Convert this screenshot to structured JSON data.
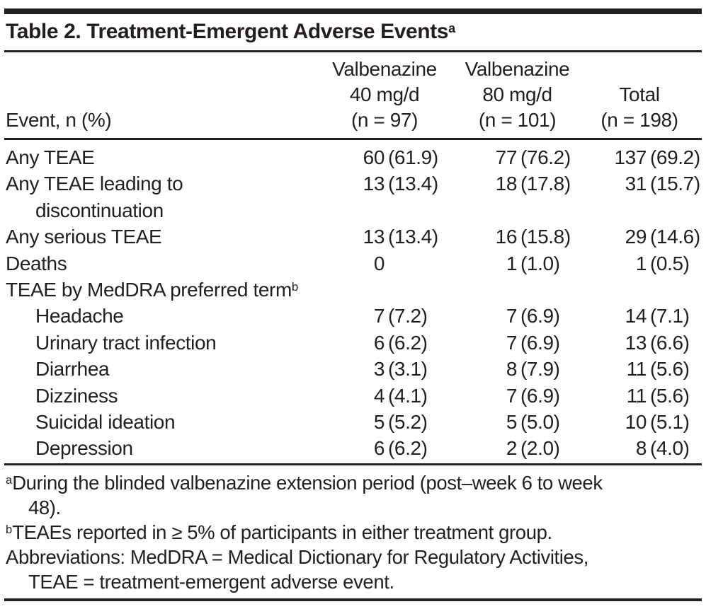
{
  "colors": {
    "text": "#231f20",
    "background": "#ffffff",
    "rule": "#231f20"
  },
  "title": {
    "text": "Table 2. Treatment-Emergent Adverse Events",
    "superscript": "a"
  },
  "table": {
    "row_header_label": "Event, n (%)",
    "columns": [
      {
        "lines": [
          "Valbenazine",
          "40 mg/d",
          "(n = 97)"
        ]
      },
      {
        "lines": [
          "Valbenazine",
          "80 mg/d",
          "(n = 101)"
        ]
      },
      {
        "lines": [
          "Total",
          "(n = 198)"
        ]
      }
    ],
    "rows": [
      {
        "label_lines": [
          "Any TEAE"
        ],
        "indent": false,
        "sup": "",
        "values": [
          [
            "60",
            "(61.9)"
          ],
          [
            "77",
            "(76.2)"
          ],
          [
            "137",
            "(69.2)"
          ]
        ]
      },
      {
        "label_lines": [
          "Any TEAE leading to",
          "discontinuation"
        ],
        "indent": false,
        "sup": "",
        "values": [
          [
            "13",
            "(13.4)"
          ],
          [
            "18",
            "(17.8)"
          ],
          [
            "31",
            "(15.7)"
          ]
        ]
      },
      {
        "label_lines": [
          "Any serious TEAE"
        ],
        "indent": false,
        "sup": "",
        "values": [
          [
            "13",
            "(13.4)"
          ],
          [
            "16",
            "(15.8)"
          ],
          [
            "29",
            "(14.6)"
          ]
        ]
      },
      {
        "label_lines": [
          "Deaths"
        ],
        "indent": false,
        "sup": "",
        "values": [
          [
            "0",
            ""
          ],
          [
            "1",
            "(1.0)"
          ],
          [
            "1",
            "(0.5)"
          ]
        ]
      },
      {
        "label_lines": [
          "TEAE by MedDRA preferred term"
        ],
        "indent": false,
        "sup": "b",
        "values": null
      },
      {
        "label_lines": [
          "Headache"
        ],
        "indent": true,
        "sup": "",
        "values": [
          [
            "7",
            "(7.2)"
          ],
          [
            "7",
            "(6.9)"
          ],
          [
            "14",
            "(7.1)"
          ]
        ]
      },
      {
        "label_lines": [
          "Urinary tract infection"
        ],
        "indent": true,
        "sup": "",
        "values": [
          [
            "6",
            "(6.2)"
          ],
          [
            "7",
            "(6.9)"
          ],
          [
            "13",
            "(6.6)"
          ]
        ]
      },
      {
        "label_lines": [
          "Diarrhea"
        ],
        "indent": true,
        "sup": "",
        "values": [
          [
            "3",
            "(3.1)"
          ],
          [
            "8",
            "(7.9)"
          ],
          [
            "11",
            "(5.6)"
          ]
        ]
      },
      {
        "label_lines": [
          "Dizziness"
        ],
        "indent": true,
        "sup": "",
        "values": [
          [
            "4",
            "(4.1)"
          ],
          [
            "7",
            "(6.9)"
          ],
          [
            "11",
            "(5.6)"
          ]
        ]
      },
      {
        "label_lines": [
          "Suicidal ideation"
        ],
        "indent": true,
        "sup": "",
        "values": [
          [
            "5",
            "(5.2)"
          ],
          [
            "5",
            "(5.0)"
          ],
          [
            "10",
            "(5.1)"
          ]
        ]
      },
      {
        "label_lines": [
          "Depression"
        ],
        "indent": true,
        "sup": "",
        "values": [
          [
            "6",
            "(6.2)"
          ],
          [
            "2",
            "(2.0)"
          ],
          [
            "8",
            "(4.0)"
          ]
        ]
      }
    ]
  },
  "footnotes": [
    {
      "marker": "a",
      "lines": [
        "During the blinded valbenazine extension period (post–week 6 to week",
        "48)."
      ]
    },
    {
      "marker": "b",
      "lines": [
        "TEAEs reported in ≥ 5% of participants in either treatment group."
      ]
    },
    {
      "marker": "",
      "lines": [
        "Abbreviations: MedDRA = Medical Dictionary for Regulatory Activities,",
        "TEAE = treatment-emergent adverse event."
      ]
    }
  ]
}
